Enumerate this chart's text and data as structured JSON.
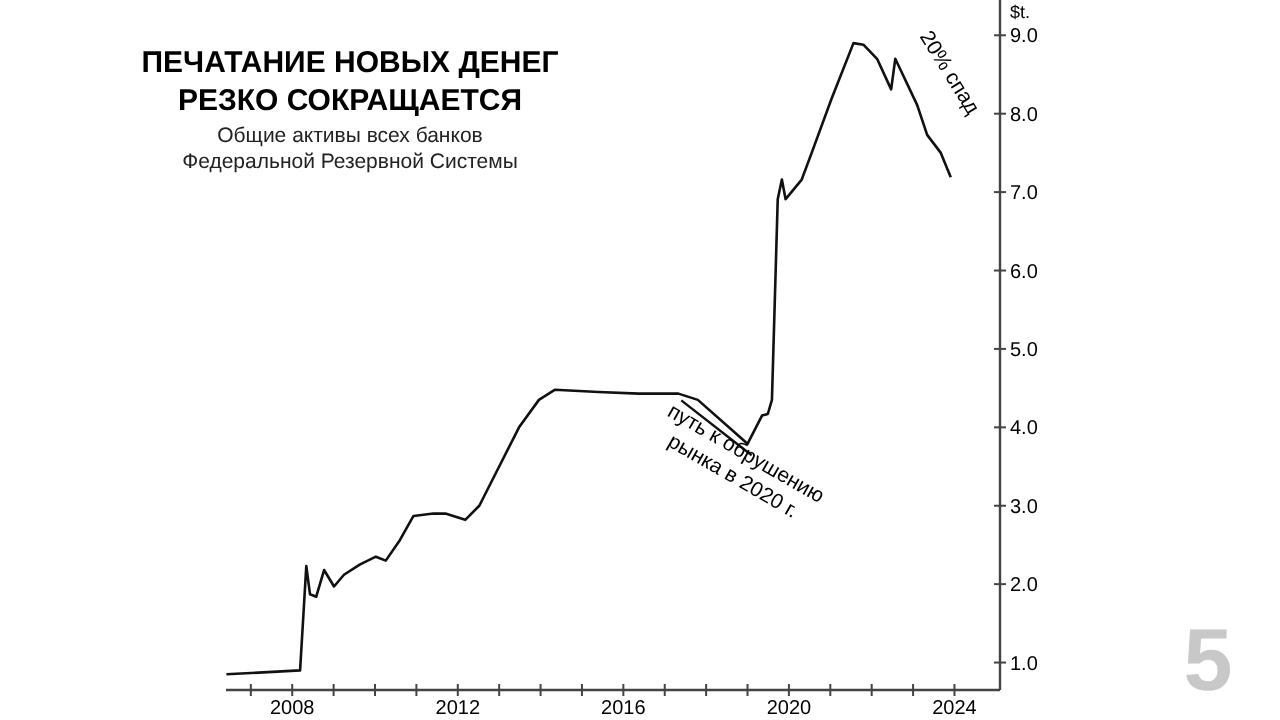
{
  "chart_data": {
    "type": "line",
    "title": "ПЕЧАТАНИЕ НОВЫХ ДЕНЕГ\nРЕЗКО СОКРАЩАЕТСЯ",
    "subtitle": "Общие активы всех банков\nФедеральной Резервной Системы",
    "ylabel": "$t.",
    "x": [
      2006.41,
      2008.19,
      2008.34,
      2008.43,
      2008.58,
      2008.77,
      2009.01,
      2009.25,
      2009.63,
      2010.02,
      2010.26,
      2010.6,
      2010.93,
      2011.41,
      2011.7,
      2012.18,
      2012.52,
      2013.0,
      2013.48,
      2013.96,
      2014.35,
      2015.4,
      2016.37,
      2017.33,
      2017.8,
      2019.0,
      2019.35,
      2019.49,
      2019.59,
      2019.73,
      2019.83,
      2019.92,
      2020.31,
      2020.55,
      2021.03,
      2021.56,
      2021.8,
      2022.13,
      2022.47,
      2022.57,
      2023.1,
      2023.34,
      2023.67,
      2023.91
    ],
    "series": [
      {
        "color": "#111111",
        "values": [
          0.85,
          0.9,
          2.23,
          1.87,
          1.84,
          2.18,
          1.97,
          2.12,
          2.25,
          2.35,
          2.3,
          2.56,
          2.87,
          2.9,
          2.9,
          2.82,
          3.0,
          3.5,
          4.0,
          4.35,
          4.48,
          4.45,
          4.43,
          4.43,
          4.35,
          3.79,
          4.15,
          4.17,
          4.35,
          6.91,
          7.16,
          6.91,
          7.16,
          7.5,
          8.19,
          8.9,
          8.88,
          8.7,
          8.31,
          8.7,
          8.11,
          7.73,
          7.5,
          7.19
        ]
      }
    ],
    "xlim": [
      2006.4,
      2025.1
    ],
    "ylim": [
      0.65,
      9.45
    ],
    "xticks": [
      {
        "value": 2007,
        "label": null
      },
      2008,
      {
        "value": 2009,
        "label": null
      },
      {
        "value": 2010,
        "label": null
      },
      {
        "value": 2011,
        "label": null
      },
      2012,
      {
        "value": 2013,
        "label": null
      },
      {
        "value": 2014,
        "label": null
      },
      {
        "value": 2015,
        "label": null
      },
      2016,
      {
        "value": 2017,
        "label": null
      },
      {
        "value": 2018,
        "label": null
      },
      {
        "value": 2019,
        "label": null
      },
      2020,
      {
        "value": 2021,
        "label": null
      },
      {
        "value": 2022,
        "label": null
      },
      {
        "value": 2023,
        "label": null
      },
      2024
    ],
    "yticks": [
      {
        "value": 1,
        "label": "1.0"
      },
      {
        "value": 2,
        "label": "2.0"
      },
      {
        "value": 3,
        "label": "3.0"
      },
      {
        "value": 4,
        "label": "4.0"
      },
      {
        "value": 5,
        "label": "5.0"
      },
      {
        "value": 6,
        "label": "6.0"
      },
      {
        "value": 7,
        "label": "7.0"
      },
      {
        "value": 8,
        "label": "8.0"
      },
      {
        "value": 9,
        "label": "9.0"
      }
    ],
    "grid": false,
    "marker": "none",
    "line_style": "solid",
    "annotations": [
      {
        "text": "путь к обрушению\nрынка в 2020 г.",
        "x": 2018.4,
        "y": 4.0
      },
      "20% спад",
      "5"
    ]
  }
}
